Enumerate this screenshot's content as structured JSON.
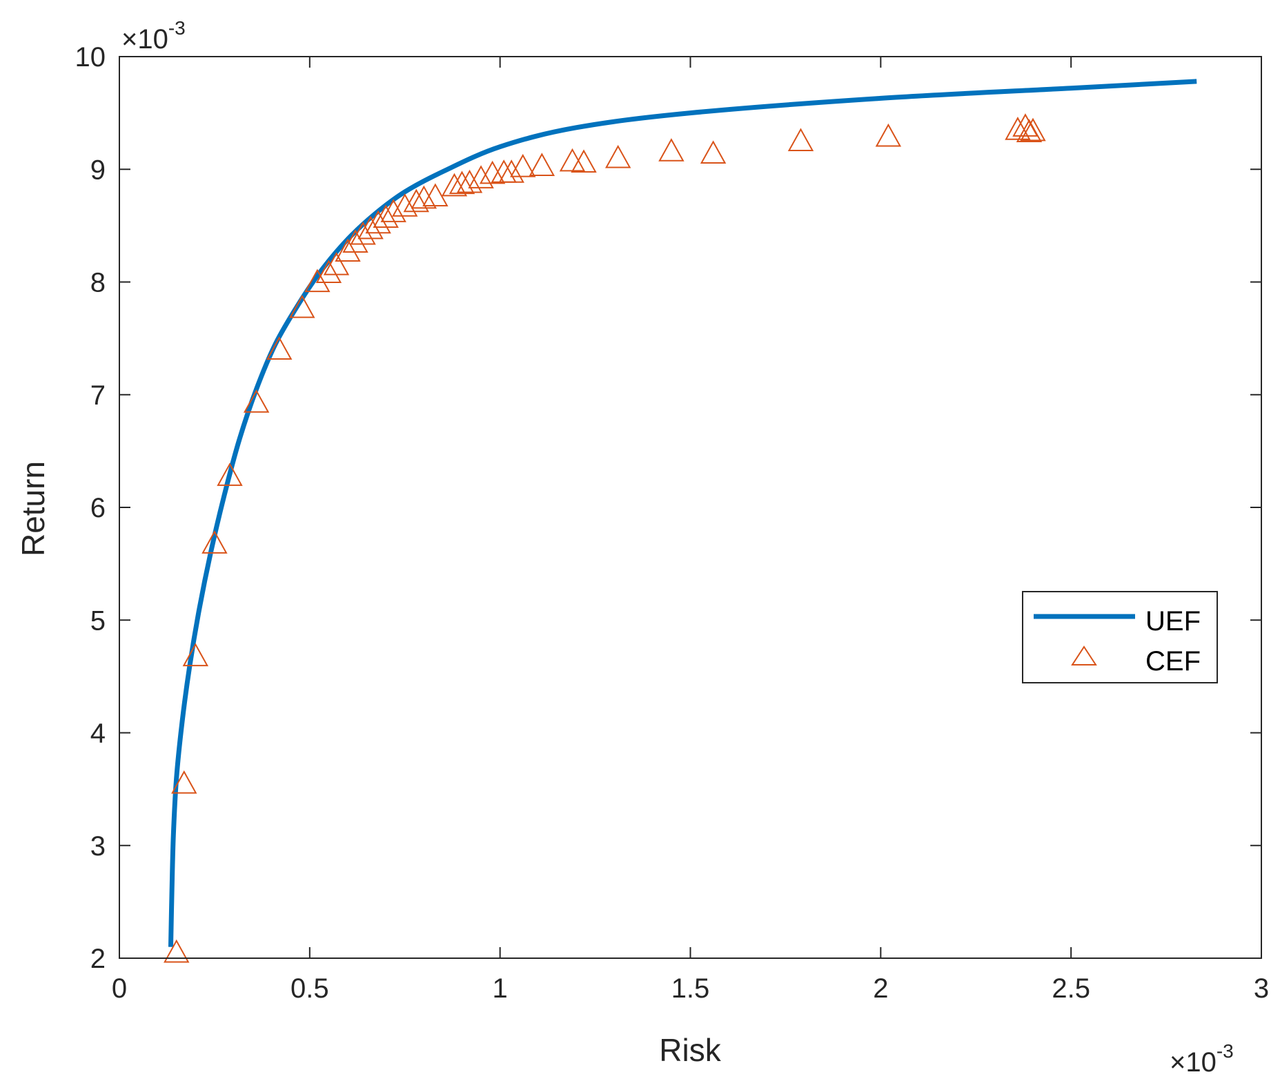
{
  "chart_data": {
    "type": "line",
    "xlabel": "Risk",
    "ylabel": "Return",
    "x_exponent": {
      "base": "×10",
      "power": "-3"
    },
    "y_exponent": {
      "base": "×10",
      "power": "-3"
    },
    "xlim": [
      0,
      3
    ],
    "ylim": [
      2,
      10
    ],
    "x_ticks": [
      "0",
      "0.5",
      "1",
      "1.5",
      "2",
      "2.5",
      "3"
    ],
    "y_ticks": [
      "2",
      "3",
      "4",
      "5",
      "6",
      "7",
      "8",
      "9",
      "10"
    ],
    "grid": false,
    "legend_position": "middle-right",
    "series": [
      {
        "name": "UEF",
        "style": "line",
        "color": "#0072BD",
        "points": [
          [
            0.135,
            2.1
          ],
          [
            0.138,
            2.6
          ],
          [
            0.142,
            3.1
          ],
          [
            0.15,
            3.6
          ],
          [
            0.165,
            4.1
          ],
          [
            0.185,
            4.6
          ],
          [
            0.21,
            5.1
          ],
          [
            0.24,
            5.6
          ],
          [
            0.275,
            6.1
          ],
          [
            0.315,
            6.6
          ],
          [
            0.36,
            7.05
          ],
          [
            0.41,
            7.45
          ],
          [
            0.47,
            7.8
          ],
          [
            0.53,
            8.1
          ],
          [
            0.6,
            8.38
          ],
          [
            0.67,
            8.6
          ],
          [
            0.75,
            8.8
          ],
          [
            0.85,
            8.98
          ],
          [
            1.0,
            9.2
          ],
          [
            1.2,
            9.37
          ],
          [
            1.5,
            9.5
          ],
          [
            2.0,
            9.63
          ],
          [
            2.5,
            9.72
          ],
          [
            2.83,
            9.78
          ]
        ]
      },
      {
        "name": "CEF",
        "style": "marker",
        "marker": "triangle",
        "color": "#D95319",
        "points": [
          [
            0.15,
            2.05
          ],
          [
            0.17,
            3.55
          ],
          [
            0.2,
            4.68
          ],
          [
            0.25,
            5.68
          ],
          [
            0.29,
            6.28
          ],
          [
            0.36,
            6.93
          ],
          [
            0.42,
            7.4
          ],
          [
            0.48,
            7.77
          ],
          [
            0.52,
            8.0
          ],
          [
            0.55,
            8.08
          ],
          [
            0.57,
            8.15
          ],
          [
            0.6,
            8.27
          ],
          [
            0.62,
            8.35
          ],
          [
            0.64,
            8.42
          ],
          [
            0.66,
            8.47
          ],
          [
            0.68,
            8.52
          ],
          [
            0.7,
            8.57
          ],
          [
            0.72,
            8.62
          ],
          [
            0.75,
            8.67
          ],
          [
            0.78,
            8.71
          ],
          [
            0.8,
            8.74
          ],
          [
            0.83,
            8.76
          ],
          [
            0.88,
            8.85
          ],
          [
            0.9,
            8.87
          ],
          [
            0.92,
            8.88
          ],
          [
            0.95,
            8.92
          ],
          [
            0.98,
            8.96
          ],
          [
            1.01,
            8.97
          ],
          [
            1.03,
            8.97
          ],
          [
            1.06,
            9.02
          ],
          [
            1.11,
            9.03
          ],
          [
            1.19,
            9.07
          ],
          [
            1.22,
            9.06
          ],
          [
            1.31,
            9.1
          ],
          [
            1.45,
            9.16
          ],
          [
            1.56,
            9.14
          ],
          [
            1.79,
            9.25
          ],
          [
            2.02,
            9.29
          ],
          [
            2.36,
            9.35
          ],
          [
            2.38,
            9.38
          ],
          [
            2.39,
            9.33
          ],
          [
            2.4,
            9.34
          ]
        ]
      }
    ]
  }
}
